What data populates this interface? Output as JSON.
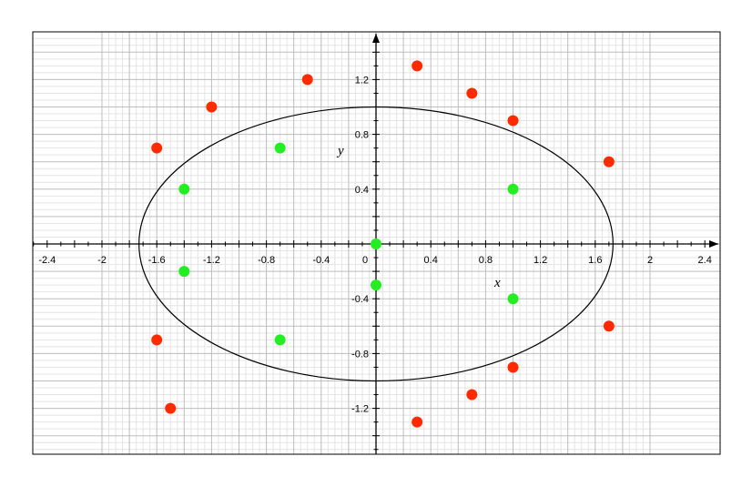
{
  "chart_data": {
    "type": "scatter",
    "title": "",
    "xlabel": "x",
    "ylabel": "y",
    "xlim": [
      -2.5,
      2.5
    ],
    "ylim": [
      -1.55,
      1.55
    ],
    "grid": true,
    "x_ticks": [
      "-2.4",
      "-2",
      "-1.6",
      "-1.2",
      "-0.8",
      "-0.4",
      "0",
      "0.4",
      "0.8",
      "1.2",
      "1.6",
      "2",
      "2.4"
    ],
    "y_ticks": [
      "-1.2",
      "-0.8",
      "-0.4",
      "0.4",
      "0.8",
      "1.2"
    ],
    "ellipse": {
      "center": [
        0,
        0
      ],
      "semi_axis_x": 1.73,
      "semi_axis_y": 1.0,
      "color": "#000000"
    },
    "series": [
      {
        "color": "#ff2a00",
        "points": [
          [
            -1.6,
            0.7
          ],
          [
            -1.2,
            1.0
          ],
          [
            -0.5,
            1.2
          ],
          [
            0.3,
            1.3
          ],
          [
            0.7,
            1.1
          ],
          [
            1.0,
            0.9
          ],
          [
            1.7,
            0.6
          ],
          [
            -1.6,
            -0.7
          ],
          [
            -1.5,
            -1.2
          ],
          [
            0.3,
            -1.3
          ],
          [
            0.7,
            -1.1
          ],
          [
            1.0,
            -0.9
          ],
          [
            1.7,
            -0.6
          ]
        ]
      },
      {
        "color": "#22ee22",
        "points": [
          [
            -0.7,
            0.7
          ],
          [
            -1.4,
            0.4
          ],
          [
            1.0,
            0.4
          ],
          [
            0.0,
            0.0
          ],
          [
            -1.4,
            -0.2
          ],
          [
            0.0,
            -0.3
          ],
          [
            1.0,
            -0.4
          ],
          [
            -0.7,
            -0.7
          ]
        ]
      }
    ]
  }
}
